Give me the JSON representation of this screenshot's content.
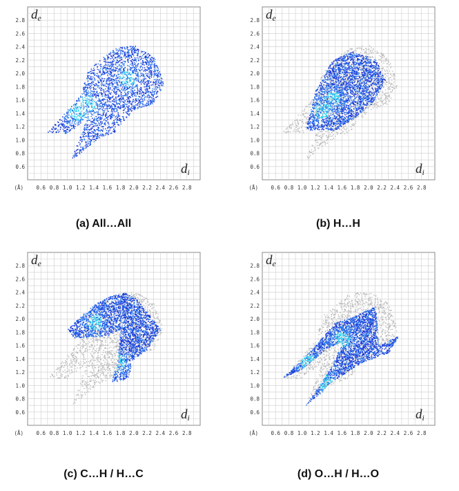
{
  "colors": {
    "background_points": "#b9b9b9",
    "points_dark": "#1632d8",
    "points_mid": "#2a78f0",
    "points_light": "#2fd2f0",
    "grid": "#cccccc"
  },
  "panels": [
    {
      "caption": "(a)   All…All",
      "de_label": "d",
      "de_sub": "e",
      "di_label": "d",
      "di_sub": "i",
      "unit_label": "(Å)",
      "chart_data": {
        "type": "scatter",
        "subtype": "hirshfeld-fingerprint-plot",
        "highlighted_contact": "All…All",
        "x_range": [
          0.4,
          3.0
        ],
        "y_range": [
          0.4,
          3.0
        ],
        "x_ticks": [
          "0.6",
          "0.8",
          "1.0",
          "1.2",
          "1.4",
          "1.6",
          "1.8",
          "2.0",
          "2.2",
          "2.4",
          "2.6",
          "2.8"
        ],
        "y_ticks": [
          "0.6",
          "0.8",
          "1.0",
          "1.2",
          "1.4",
          "1.6",
          "1.8",
          "2.0",
          "2.2",
          "2.4",
          "2.6",
          "2.8"
        ],
        "grid": true,
        "envelope": [
          [
            0.7,
            1.12
          ],
          [
            1.2,
            1.68
          ],
          [
            1.3,
            2.05
          ],
          [
            1.7,
            2.38
          ],
          [
            2.0,
            2.43
          ],
          [
            2.3,
            2.25
          ],
          [
            2.45,
            1.85
          ],
          [
            2.3,
            1.55
          ],
          [
            2.0,
            1.45
          ],
          [
            1.7,
            1.12
          ],
          [
            1.5,
            1.05
          ],
          [
            1.05,
            0.7
          ],
          [
            1.3,
            1.35
          ],
          [
            1.0,
            1.1
          ]
        ],
        "highlight": [
          [
            0.7,
            1.12
          ],
          [
            1.2,
            1.68
          ],
          [
            1.3,
            2.05
          ],
          [
            1.7,
            2.38
          ],
          [
            2.0,
            2.43
          ],
          [
            2.3,
            2.25
          ],
          [
            2.45,
            1.85
          ],
          [
            2.3,
            1.55
          ],
          [
            2.0,
            1.45
          ],
          [
            1.7,
            1.12
          ],
          [
            1.5,
            1.05
          ],
          [
            1.05,
            0.7
          ],
          [
            1.3,
            1.35
          ],
          [
            1.0,
            1.1
          ]
        ],
        "hotspots": [
          [
            1.9,
            1.93
          ],
          [
            1.3,
            1.55
          ],
          [
            1.15,
            1.42
          ]
        ]
      }
    },
    {
      "caption": "(b)   H…H",
      "de_label": "d",
      "de_sub": "e",
      "di_label": "d",
      "di_sub": "i",
      "unit_label": "(Å)",
      "chart_data": {
        "type": "scatter",
        "subtype": "hirshfeld-fingerprint-plot",
        "highlighted_contact": "H…H",
        "x_range": [
          0.4,
          3.0
        ],
        "y_range": [
          0.4,
          3.0
        ],
        "x_ticks": [
          "0.6",
          "0.8",
          "1.0",
          "1.2",
          "1.4",
          "1.6",
          "1.8",
          "2.0",
          "2.2",
          "2.4",
          "2.6",
          "2.8"
        ],
        "y_ticks": [
          "0.6",
          "0.8",
          "1.0",
          "1.2",
          "1.4",
          "1.6",
          "1.8",
          "2.0",
          "2.2",
          "2.4",
          "2.6",
          "2.8"
        ],
        "grid": true,
        "envelope": [
          [
            0.7,
            1.12
          ],
          [
            1.2,
            1.68
          ],
          [
            1.3,
            2.05
          ],
          [
            1.7,
            2.38
          ],
          [
            2.0,
            2.43
          ],
          [
            2.3,
            2.25
          ],
          [
            2.45,
            1.85
          ],
          [
            2.3,
            1.55
          ],
          [
            2.0,
            1.45
          ],
          [
            1.7,
            1.12
          ],
          [
            1.5,
            1.05
          ],
          [
            1.05,
            0.7
          ],
          [
            1.3,
            1.35
          ],
          [
            1.0,
            1.1
          ]
        ],
        "highlight": [
          [
            1.05,
            1.15
          ],
          [
            1.2,
            1.75
          ],
          [
            1.45,
            2.2
          ],
          [
            1.75,
            2.33
          ],
          [
            2.1,
            2.22
          ],
          [
            2.25,
            1.9
          ],
          [
            2.05,
            1.55
          ],
          [
            1.8,
            1.35
          ],
          [
            1.5,
            1.15
          ],
          [
            1.3,
            1.15
          ]
        ],
        "hotspots": [
          [
            1.45,
            1.62
          ],
          [
            1.3,
            1.45
          ]
        ]
      }
    },
    {
      "caption": "(c)   C…H / H…C",
      "de_label": "d",
      "de_sub": "e",
      "di_label": "d",
      "di_sub": "i",
      "unit_label": "(Å)",
      "chart_data": {
        "type": "scatter",
        "subtype": "hirshfeld-fingerprint-plot",
        "highlighted_contact": "C…H / H…C",
        "x_range": [
          0.4,
          3.0
        ],
        "y_range": [
          0.4,
          3.0
        ],
        "x_ticks": [
          "0.6",
          "0.8",
          "1.0",
          "1.2",
          "1.4",
          "1.6",
          "1.8",
          "2.0",
          "2.2",
          "2.4",
          "2.6",
          "2.8"
        ],
        "y_ticks": [
          "0.6",
          "0.8",
          "1.0",
          "1.2",
          "1.4",
          "1.6",
          "1.8",
          "2.0",
          "2.2",
          "2.4",
          "2.6",
          "2.8"
        ],
        "grid": true,
        "envelope": [
          [
            0.7,
            1.12
          ],
          [
            1.2,
            1.68
          ],
          [
            1.3,
            2.05
          ],
          [
            1.7,
            2.38
          ],
          [
            2.0,
            2.43
          ],
          [
            2.3,
            2.25
          ],
          [
            2.45,
            1.85
          ],
          [
            2.3,
            1.55
          ],
          [
            2.0,
            1.45
          ],
          [
            1.7,
            1.12
          ],
          [
            1.5,
            1.05
          ],
          [
            1.05,
            0.7
          ],
          [
            1.3,
            1.35
          ],
          [
            1.0,
            1.1
          ]
        ],
        "highlight": [
          [
            1.0,
            1.85
          ],
          [
            1.2,
            2.05
          ],
          [
            1.45,
            2.25
          ],
          [
            1.65,
            2.35
          ],
          [
            1.85,
            2.4
          ],
          [
            2.05,
            2.3
          ],
          [
            2.2,
            2.1
          ],
          [
            2.4,
            1.85
          ],
          [
            2.2,
            1.55
          ],
          [
            2.0,
            1.4
          ],
          [
            1.9,
            1.1
          ],
          [
            1.65,
            1.05
          ],
          [
            1.75,
            1.35
          ],
          [
            1.8,
            1.85
          ],
          [
            1.6,
            1.75
          ],
          [
            1.1,
            1.72
          ]
        ],
        "hotspots": [
          [
            1.4,
            1.95
          ],
          [
            1.75,
            1.35
          ]
        ]
      }
    },
    {
      "caption": "(d)   O…H / H…O",
      "de_label": "d",
      "de_sub": "e",
      "di_label": "d",
      "di_sub": "i",
      "unit_label": "(Å)",
      "chart_data": {
        "type": "scatter",
        "subtype": "hirshfeld-fingerprint-plot",
        "highlighted_contact": "O…H / H…O",
        "x_range": [
          0.4,
          3.0
        ],
        "y_range": [
          0.4,
          3.0
        ],
        "x_ticks": [
          "0.6",
          "0.8",
          "1.0",
          "1.2",
          "1.4",
          "1.6",
          "1.8",
          "2.0",
          "2.2",
          "2.4",
          "2.6",
          "2.8"
        ],
        "y_ticks": [
          "0.6",
          "0.8",
          "1.0",
          "1.2",
          "1.4",
          "1.6",
          "1.8",
          "2.0",
          "2.2",
          "2.4",
          "2.6",
          "2.8"
        ],
        "grid": true,
        "envelope": [
          [
            0.7,
            1.12
          ],
          [
            1.2,
            1.68
          ],
          [
            1.3,
            2.05
          ],
          [
            1.7,
            2.38
          ],
          [
            2.0,
            2.43
          ],
          [
            2.3,
            2.25
          ],
          [
            2.45,
            1.85
          ],
          [
            2.3,
            1.55
          ],
          [
            2.0,
            1.45
          ],
          [
            1.7,
            1.12
          ],
          [
            1.5,
            1.05
          ],
          [
            1.05,
            0.7
          ],
          [
            1.3,
            1.35
          ],
          [
            1.0,
            1.1
          ]
        ],
        "highlight": [
          [
            0.7,
            1.12
          ],
          [
            1.15,
            1.55
          ],
          [
            1.5,
            1.95
          ],
          [
            1.8,
            2.05
          ],
          [
            2.1,
            2.2
          ],
          [
            2.15,
            1.6
          ],
          [
            2.45,
            1.75
          ],
          [
            2.3,
            1.5
          ],
          [
            1.9,
            1.35
          ],
          [
            1.5,
            1.1
          ],
          [
            1.05,
            0.7
          ],
          [
            1.45,
            1.3
          ],
          [
            1.6,
            1.65
          ],
          [
            1.35,
            1.55
          ],
          [
            1.0,
            1.25
          ]
        ],
        "hotspots": [
          [
            1.1,
            1.35
          ],
          [
            1.35,
            1.05
          ],
          [
            1.6,
            1.7
          ]
        ]
      }
    }
  ]
}
